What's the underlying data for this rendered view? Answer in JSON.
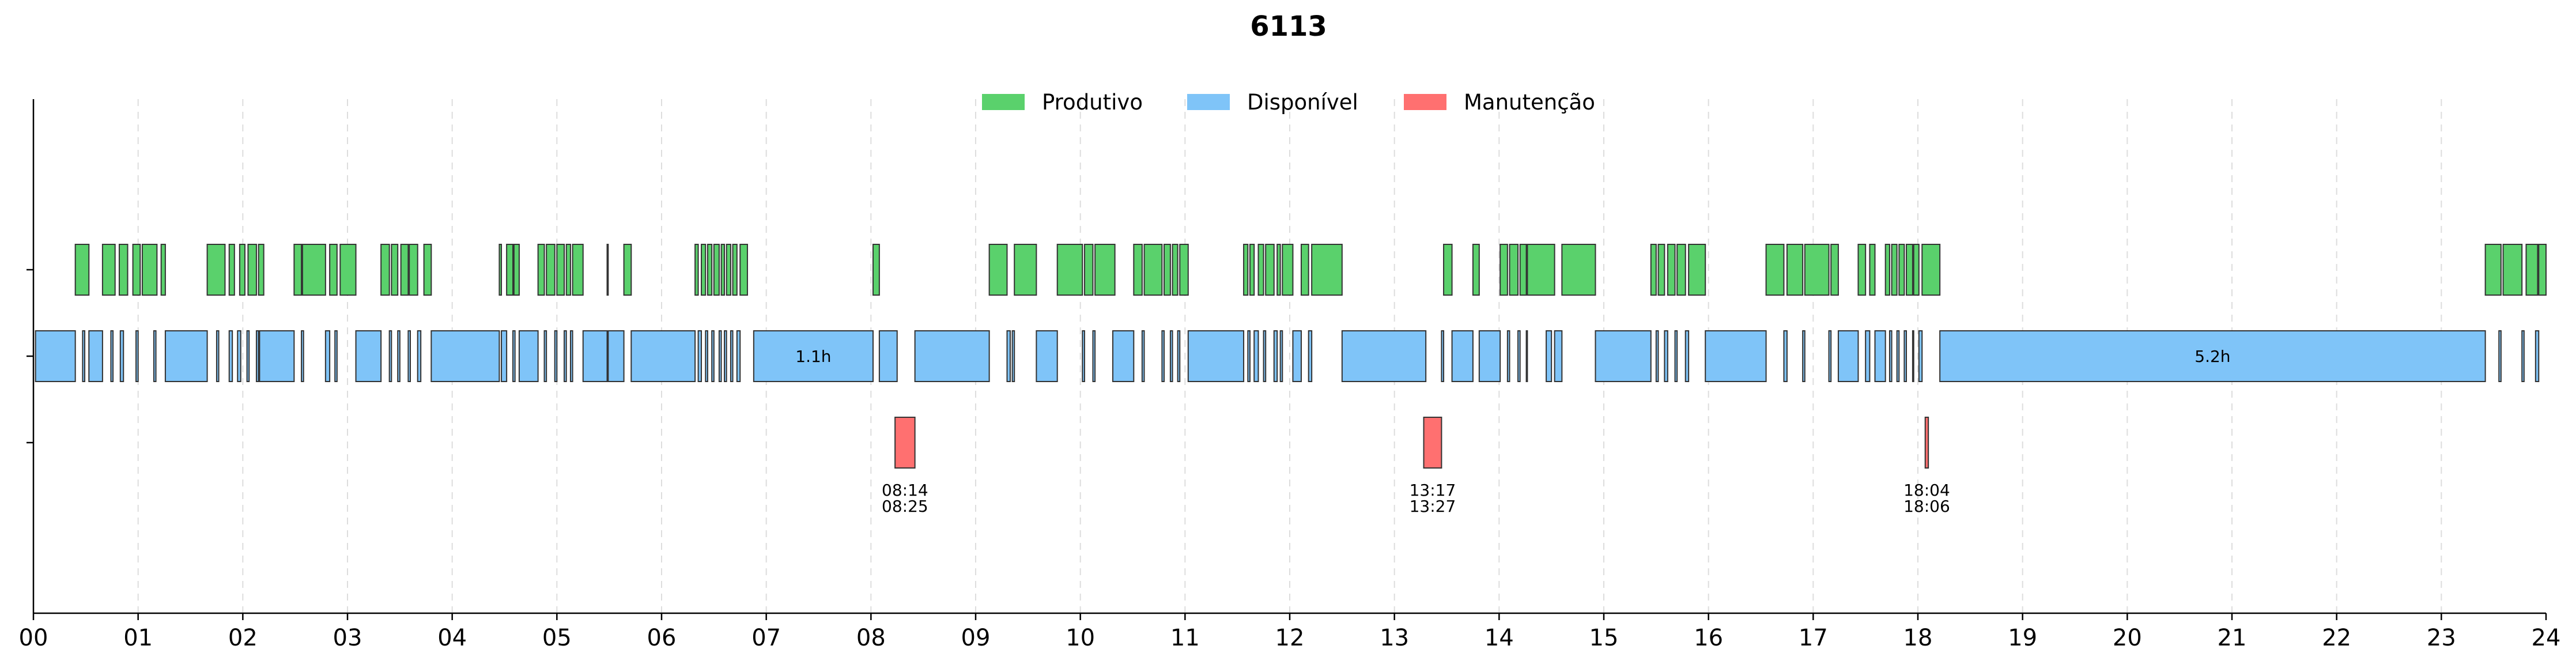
{
  "chart_data": {
    "type": "timeline",
    "title": "6113",
    "xlim": [
      0,
      24
    ],
    "x_ticks": [
      "00",
      "01",
      "02",
      "03",
      "04",
      "05",
      "06",
      "07",
      "08",
      "09",
      "10",
      "11",
      "12",
      "13",
      "14",
      "15",
      "16",
      "17",
      "18",
      "19",
      "20",
      "21",
      "22",
      "23",
      "24"
    ],
    "grid": "vertical dashed at each hour",
    "legend_position": "top-center",
    "series": [
      {
        "name": "Produtivo",
        "color": "#5ad16c",
        "row": 0,
        "segments": [
          [
            0.4,
            0.53
          ],
          [
            0.66,
            0.78
          ],
          [
            0.82,
            0.9
          ],
          [
            0.95,
            1.02
          ],
          [
            1.04,
            1.18
          ],
          [
            1.22,
            1.26
          ],
          [
            1.66,
            1.83
          ],
          [
            1.87,
            1.92
          ],
          [
            1.97,
            2.02
          ],
          [
            2.05,
            2.13
          ],
          [
            2.15,
            2.2
          ],
          [
            2.49,
            2.56
          ],
          [
            2.57,
            2.79
          ],
          [
            2.83,
            2.9
          ],
          [
            2.93,
            3.08
          ],
          [
            3.32,
            3.4
          ],
          [
            3.42,
            3.48
          ],
          [
            3.51,
            3.58
          ],
          [
            3.59,
            3.67
          ],
          [
            3.73,
            3.8
          ],
          [
            4.45,
            4.47
          ],
          [
            4.52,
            4.58
          ],
          [
            4.59,
            4.64
          ],
          [
            4.82,
            4.88
          ],
          [
            4.9,
            4.98
          ],
          [
            5.0,
            5.07
          ],
          [
            5.09,
            5.13
          ],
          [
            5.15,
            5.25
          ],
          [
            5.48,
            5.49
          ],
          [
            5.64,
            5.71
          ],
          [
            6.32,
            6.35
          ],
          [
            6.38,
            6.42
          ],
          [
            6.44,
            6.48
          ],
          [
            6.5,
            6.55
          ],
          [
            6.57,
            6.6
          ],
          [
            6.62,
            6.66
          ],
          [
            6.68,
            6.72
          ],
          [
            6.75,
            6.82
          ],
          [
            8.02,
            8.08
          ],
          [
            9.13,
            9.3
          ],
          [
            9.37,
            9.58
          ],
          [
            9.78,
            10.02
          ],
          [
            10.04,
            10.12
          ],
          [
            10.14,
            10.33
          ],
          [
            10.51,
            10.59
          ],
          [
            10.61,
            10.78
          ],
          [
            10.8,
            10.86
          ],
          [
            10.88,
            10.93
          ],
          [
            10.95,
            11.03
          ],
          [
            11.56,
            11.6
          ],
          [
            11.62,
            11.66
          ],
          [
            11.7,
            11.75
          ],
          [
            11.77,
            11.85
          ],
          [
            11.88,
            11.91
          ],
          [
            11.93,
            12.03
          ],
          [
            12.11,
            12.18
          ],
          [
            12.21,
            12.5
          ],
          [
            13.47,
            13.55
          ],
          [
            13.75,
            13.81
          ],
          [
            14.01,
            14.08
          ],
          [
            14.1,
            14.18
          ],
          [
            14.2,
            14.26
          ],
          [
            14.27,
            14.53
          ],
          [
            14.6,
            14.92
          ],
          [
            15.45,
            15.5
          ],
          [
            15.52,
            15.58
          ],
          [
            15.61,
            15.68
          ],
          [
            15.7,
            15.78
          ],
          [
            15.81,
            15.97
          ],
          [
            16.55,
            16.72
          ],
          [
            16.75,
            16.9
          ],
          [
            16.92,
            17.15
          ],
          [
            17.17,
            17.24
          ],
          [
            17.43,
            17.5
          ],
          [
            17.54,
            17.59
          ],
          [
            17.69,
            17.73
          ],
          [
            17.75,
            17.8
          ],
          [
            17.82,
            17.87
          ],
          [
            17.89,
            17.95
          ],
          [
            17.96,
            18.01
          ],
          [
            18.04,
            18.21
          ],
          [
            23.42,
            23.57
          ],
          [
            23.59,
            23.77
          ],
          [
            23.81,
            23.92
          ],
          [
            23.93,
            24.0
          ]
        ]
      },
      {
        "name": "Disponível",
        "color": "#7fc4f8",
        "row": 1,
        "segments": [
          [
            0.02,
            0.4
          ],
          [
            0.47,
            0.49
          ],
          [
            0.53,
            0.66
          ],
          [
            0.74,
            0.76
          ],
          [
            0.83,
            0.86
          ],
          [
            0.98,
            1.0
          ],
          [
            1.15,
            1.17
          ],
          [
            1.26,
            1.66
          ],
          [
            1.75,
            1.77
          ],
          [
            1.87,
            1.9
          ],
          [
            1.95,
            1.98
          ],
          [
            2.04,
            2.06
          ],
          [
            2.13,
            2.15
          ],
          [
            2.16,
            2.49
          ],
          [
            2.56,
            2.58
          ],
          [
            2.79,
            2.83
          ],
          [
            2.88,
            2.9
          ],
          [
            3.08,
            3.32
          ],
          [
            3.4,
            3.42
          ],
          [
            3.48,
            3.5
          ],
          [
            3.58,
            3.6
          ],
          [
            3.67,
            3.7
          ],
          [
            3.8,
            4.45
          ],
          [
            4.47,
            4.52
          ],
          [
            4.58,
            4.6
          ],
          [
            4.64,
            4.82
          ],
          [
            4.88,
            4.9
          ],
          [
            4.98,
            5.0
          ],
          [
            5.07,
            5.09
          ],
          [
            5.13,
            5.15
          ],
          [
            5.25,
            5.48
          ],
          [
            5.49,
            5.64
          ],
          [
            5.71,
            6.32
          ],
          [
            6.35,
            6.38
          ],
          [
            6.42,
            6.44
          ],
          [
            6.48,
            6.5
          ],
          [
            6.55,
            6.57
          ],
          [
            6.6,
            6.62
          ],
          [
            6.66,
            6.68
          ],
          [
            6.72,
            6.75
          ],
          [
            6.88,
            8.02
          ],
          [
            8.08,
            8.25
          ],
          [
            8.42,
            9.13
          ],
          [
            9.3,
            9.33
          ],
          [
            9.35,
            9.37
          ],
          [
            9.58,
            9.78
          ],
          [
            10.02,
            10.04
          ],
          [
            10.12,
            10.14
          ],
          [
            10.31,
            10.51
          ],
          [
            10.59,
            10.61
          ],
          [
            10.78,
            10.8
          ],
          [
            10.86,
            10.88
          ],
          [
            10.93,
            10.95
          ],
          [
            11.03,
            11.56
          ],
          [
            11.6,
            11.62
          ],
          [
            11.66,
            11.7
          ],
          [
            11.75,
            11.77
          ],
          [
            11.85,
            11.88
          ],
          [
            11.91,
            11.93
          ],
          [
            12.03,
            12.11
          ],
          [
            12.18,
            12.21
          ],
          [
            12.5,
            13.3
          ],
          [
            13.45,
            13.47
          ],
          [
            13.55,
            13.75
          ],
          [
            13.81,
            14.01
          ],
          [
            14.08,
            14.1
          ],
          [
            14.18,
            14.2
          ],
          [
            14.26,
            14.27
          ],
          [
            14.45,
            14.5
          ],
          [
            14.53,
            14.6
          ],
          [
            14.92,
            15.45
          ],
          [
            15.5,
            15.52
          ],
          [
            15.58,
            15.61
          ],
          [
            15.68,
            15.7
          ],
          [
            15.78,
            15.81
          ],
          [
            15.97,
            16.55
          ],
          [
            16.72,
            16.75
          ],
          [
            16.9,
            16.92
          ],
          [
            17.15,
            17.17
          ],
          [
            17.24,
            17.43
          ],
          [
            17.5,
            17.54
          ],
          [
            17.59,
            17.69
          ],
          [
            17.73,
            17.75
          ],
          [
            17.8,
            17.82
          ],
          [
            17.87,
            17.89
          ],
          [
            17.95,
            17.96
          ],
          [
            18.01,
            18.04
          ],
          [
            18.21,
            23.42
          ],
          [
            23.55,
            23.57
          ],
          [
            23.77,
            23.79
          ],
          [
            23.9,
            23.93
          ]
        ],
        "labels": [
          {
            "segment": [
              6.88,
              8.02
            ],
            "text": "1.1h"
          },
          {
            "segment": [
              18.21,
              23.42
            ],
            "text": "5.2h"
          }
        ]
      },
      {
        "name": "Manutenção",
        "color": "#ff7070",
        "row": 2,
        "segments": [
          [
            8.23,
            8.42
          ],
          [
            13.28,
            13.45
          ],
          [
            18.07,
            18.1
          ]
        ],
        "labels": [
          {
            "start": "08:14",
            "end": "08:25"
          },
          {
            "start": "13:17",
            "end": "13:27"
          },
          {
            "start": "18:04",
            "end": "18:06"
          }
        ]
      }
    ]
  }
}
